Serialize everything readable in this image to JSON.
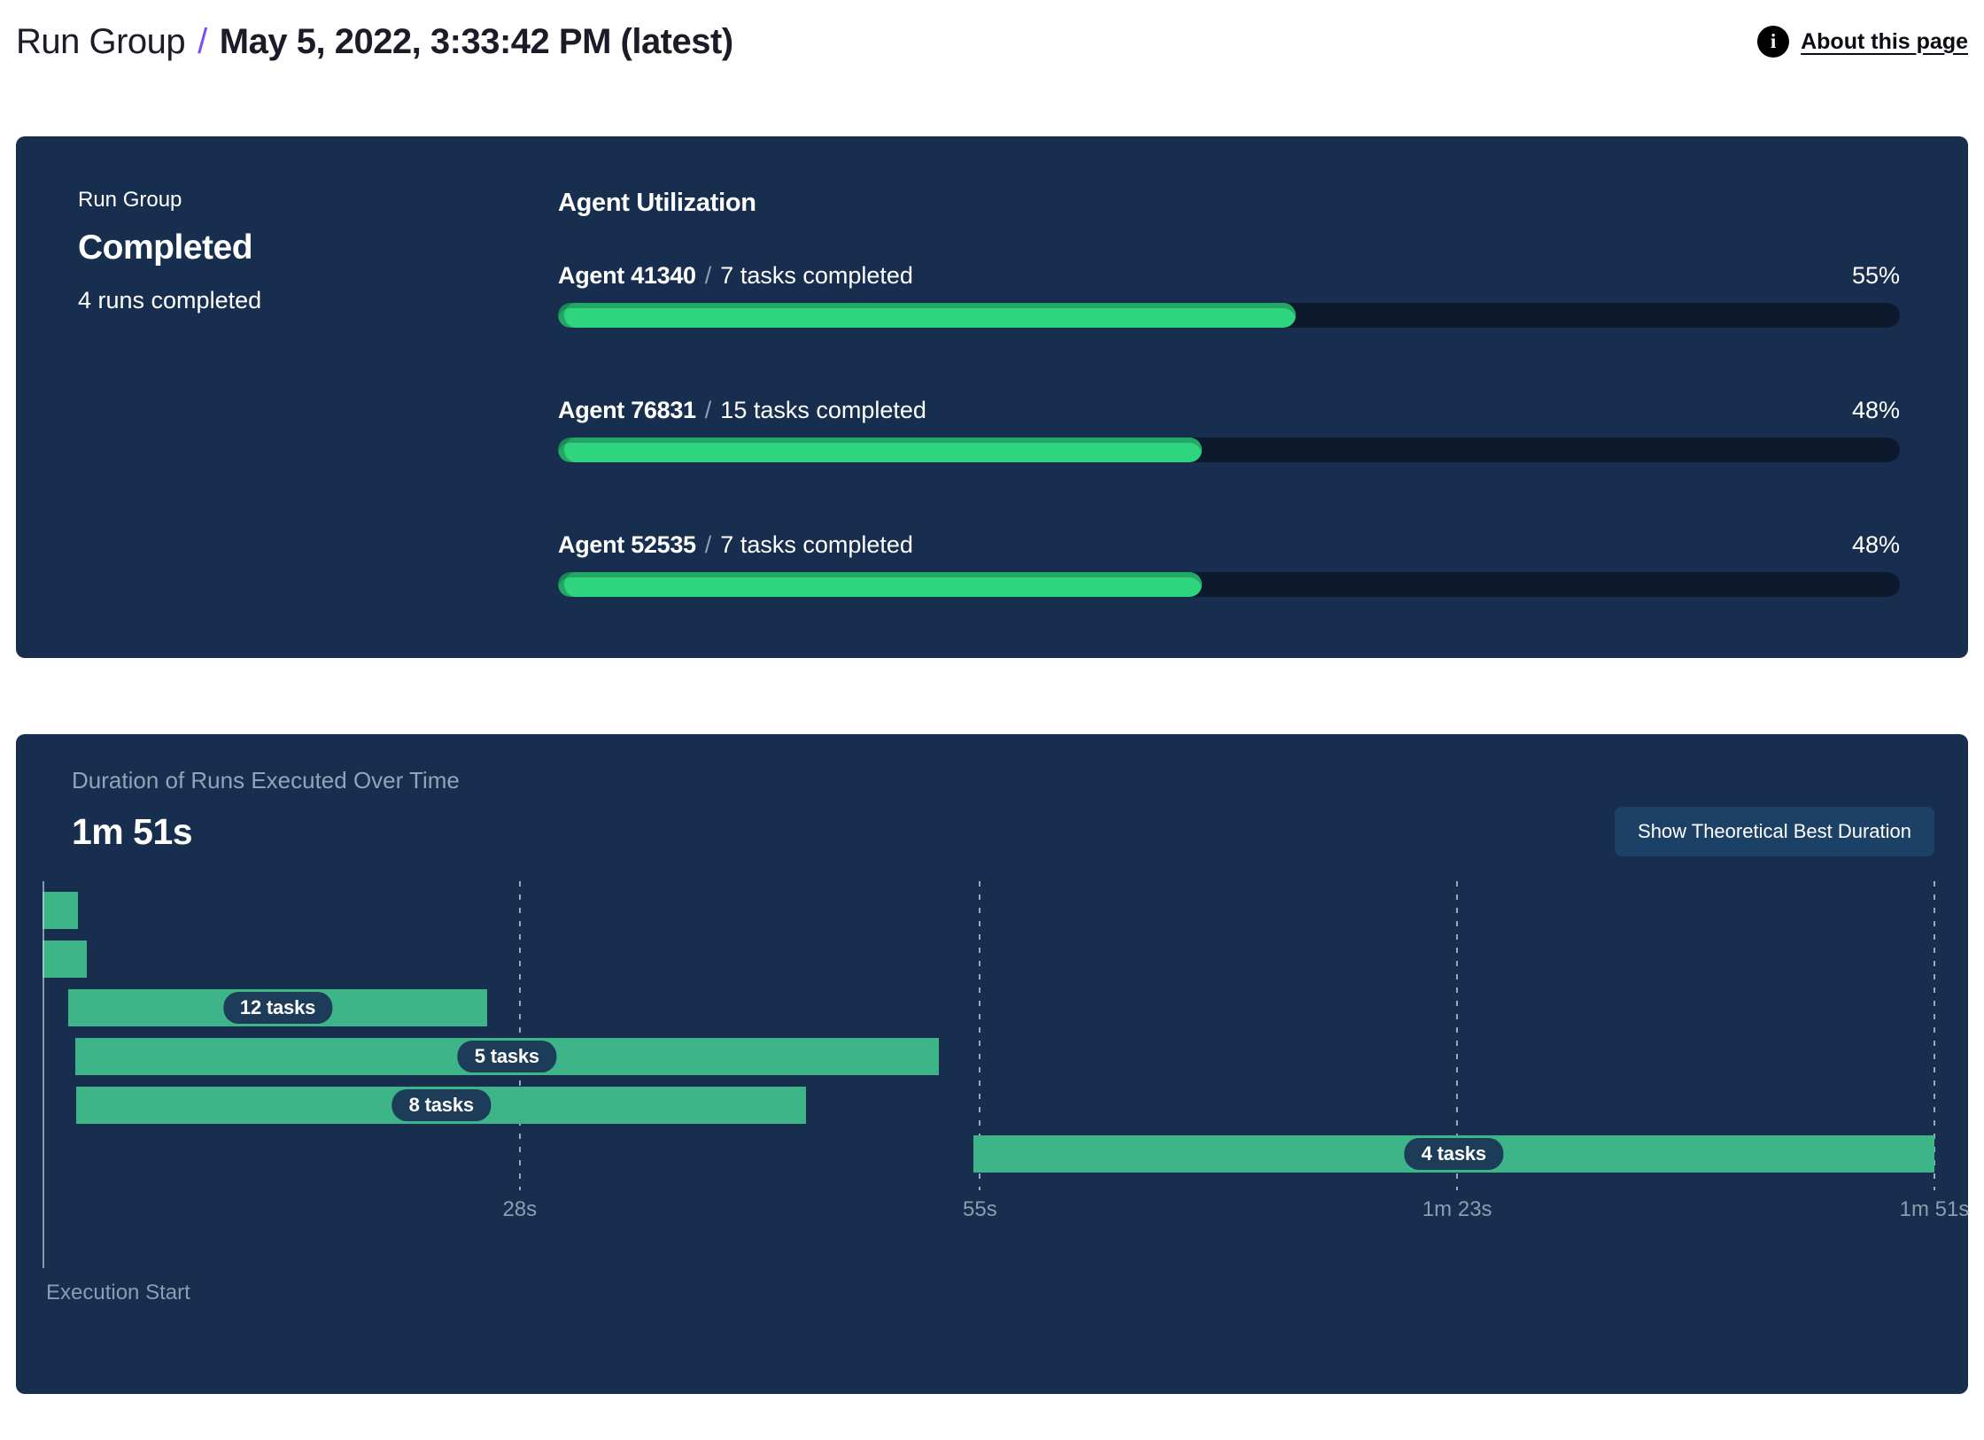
{
  "header": {
    "breadcrumb_root": "Run Group",
    "breadcrumb_separator": "/",
    "title": "May 5, 2022, 3:33:42 PM (latest)",
    "about_link": "About this page",
    "info_icon": "info-icon"
  },
  "colors": {
    "panel_bg": "#172e4e",
    "track_bg": "#0d1a2e",
    "progress_green": "#2fd57e",
    "progress_green_shade": "#2aa56b",
    "gantt_green": "#3eb489",
    "pill_bg": "#1d3c5a",
    "button_bg": "#1d4166",
    "breadcrumb_purple": "#7b4df7",
    "muted_text": "#93a3b8"
  },
  "run_summary": {
    "label": "Run Group",
    "status": "Completed",
    "detail": "4 runs completed"
  },
  "chart_data": [
    {
      "type": "bar",
      "variant": "horizontal-progress",
      "title": "Agent Utilization",
      "separator": "/",
      "unit": "%",
      "xlim": [
        0,
        100
      ],
      "agents": [
        {
          "name": "Agent 41340",
          "tasks": "7 tasks completed",
          "utilization_pct": 55,
          "pct_label": "55%"
        },
        {
          "name": "Agent 76831",
          "tasks": "15 tasks completed",
          "utilization_pct": 48,
          "pct_label": "48%"
        },
        {
          "name": "Agent 52535",
          "tasks": "7 tasks completed",
          "utilization_pct": 48,
          "pct_label": "48%"
        }
      ]
    },
    {
      "type": "bar",
      "variant": "gantt-timeline",
      "title": "Duration of Runs Executed Over Time",
      "total_duration_label": "1m 51s",
      "button_label": "Show Theoretical Best Duration",
      "xlabel": "Execution Start",
      "x_unit": "seconds",
      "xlim": [
        0,
        111
      ],
      "grid": "dotted-vertical",
      "ticks": [
        {
          "t": 28,
          "label": "28s"
        },
        {
          "t": 55,
          "label": "55s"
        },
        {
          "t": 83,
          "label": "1m 23s"
        },
        {
          "t": 111,
          "label": "1m 51s"
        }
      ],
      "bars": [
        {
          "start": 0,
          "end": 2.1,
          "label": ""
        },
        {
          "start": 0,
          "end": 2.6,
          "label": ""
        },
        {
          "start": 1.5,
          "end": 26.1,
          "label": "12 tasks"
        },
        {
          "start": 1.9,
          "end": 52.6,
          "label": "5 tasks"
        },
        {
          "start": 2.0,
          "end": 44.8,
          "label": "8 tasks"
        },
        {
          "start": 54.6,
          "end": 111,
          "label": "4 tasks"
        }
      ]
    }
  ]
}
